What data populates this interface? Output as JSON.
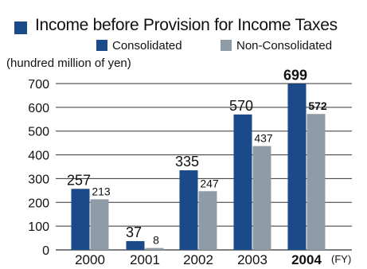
{
  "chart_data": {
    "type": "bar",
    "title": "Income before Provision for Income Taxes",
    "ylabel": "(hundred million of yen)",
    "xlabel": "(FY)",
    "categories": [
      "2000",
      "2001",
      "2002",
      "2003",
      "2004"
    ],
    "highlight_category": "2004",
    "series": [
      {
        "name": "Consolidated",
        "color": "#1a4a8a",
        "values": [
          257,
          37,
          335,
          570,
          699
        ]
      },
      {
        "name": "Non-Consolidated",
        "color": "#8f9ba6",
        "values": [
          213,
          8,
          247,
          437,
          572
        ]
      }
    ],
    "yticks": [
      "0",
      "100",
      "200",
      "300",
      "400",
      "500",
      "600",
      "700"
    ],
    "ylim": [
      0,
      700
    ],
    "grid": true,
    "legend_position": "top-right"
  }
}
